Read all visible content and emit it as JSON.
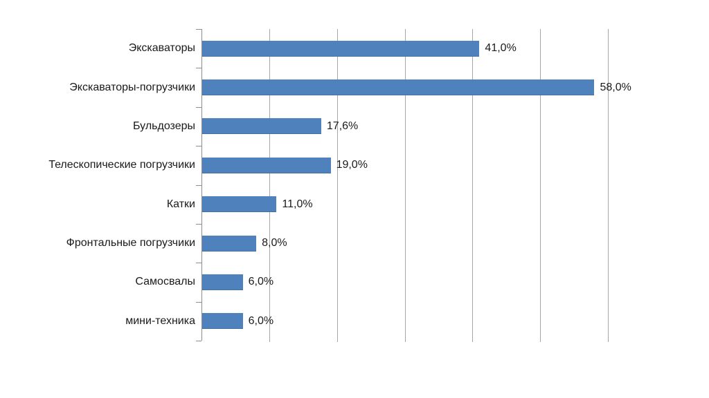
{
  "colors": {
    "bar_fill": "#4F81BD",
    "bar_edge": "#41719C",
    "gridline": "#A6A6A6",
    "axis": "#8C8C8C",
    "text": "#1A1A1A",
    "background": "#FFFFFF"
  },
  "chart_data": {
    "type": "bar",
    "orientation": "horizontal",
    "title": "",
    "xlabel": "",
    "ylabel": "",
    "categories": [
      "Экскаваторы",
      "Экскаваторы-погрузчики",
      "Бульдозеры",
      "Телескопические погрузчики",
      "Катки",
      "Фронтальные погрузчики",
      "Самосвалы",
      "мини-техника"
    ],
    "values": [
      41.0,
      58.0,
      17.6,
      19.0,
      11.0,
      8.0,
      6.0,
      6.0
    ],
    "data_labels": [
      "41,0%",
      "58,0%",
      "17,6%",
      "19,0%",
      "11,0%",
      "8,0%",
      "6,0%",
      "6,0%"
    ],
    "xlim": [
      0,
      60
    ],
    "gridline_interval": 10,
    "grid": true,
    "legend": false,
    "axis_tick_marks": "category-boundaries",
    "value_axis_labels_visible": false
  }
}
